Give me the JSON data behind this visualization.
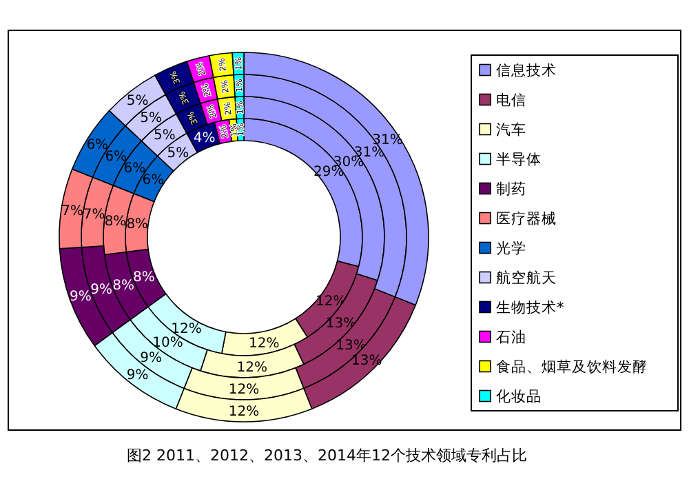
{
  "chart_data": {
    "type": "donut",
    "title": "图2 2011、2012、2013、2014年12个技术领域专利占比",
    "categories": [
      "信息技术",
      "电信",
      "汽车",
      "半导体",
      "制药",
      "医疗器械",
      "光学",
      "航空航天",
      "生物技术*",
      "石油",
      "食品、烟草及饮料发酵",
      "化妆品"
    ],
    "colors": [
      "#9999ff",
      "#993366",
      "#ffffcc",
      "#ccffff",
      "#660066",
      "#ff8080",
      "#0066cc",
      "#ccccff",
      "#000080",
      "#ff00ff",
      "#ffff00",
      "#00ffff"
    ],
    "series": [
      {
        "values": [
          29,
          12,
          12,
          12,
          8,
          8,
          6,
          5,
          4,
          2,
          1,
          1
        ],
        "value_labels": [
          "29%",
          "12%",
          "12%",
          "12%",
          "8%",
          "8%",
          "6%",
          "5%",
          "4%",
          "2%",
          "1%",
          "1%"
        ]
      },
      {
        "values": [
          30,
          13,
          12,
          10,
          8,
          8,
          6,
          5,
          3,
          2,
          2,
          1
        ],
        "value_labels": [
          "30%",
          "13%",
          "12%",
          "10%",
          "8%",
          "8%",
          "6%",
          "5%",
          "3%",
          "2%",
          "2%",
          "1%"
        ]
      },
      {
        "values": [
          31,
          13,
          12,
          9,
          9,
          7,
          6,
          5,
          3,
          2,
          2,
          1
        ],
        "value_labels": [
          "31%",
          "13%",
          "12%",
          "9%",
          "9%",
          "7%",
          "6%",
          "5%",
          "3%",
          "2%",
          "2%",
          "1%"
        ]
      },
      {
        "values": [
          31,
          13,
          12,
          9,
          9,
          7,
          6,
          5,
          3,
          2,
          2,
          1
        ],
        "value_labels": [
          "31%",
          "13%",
          "12%",
          "9%",
          "9%",
          "7%",
          "6%",
          "5%",
          "3%",
          "2%",
          "2%",
          "1%"
        ]
      }
    ],
    "legend": "right"
  }
}
